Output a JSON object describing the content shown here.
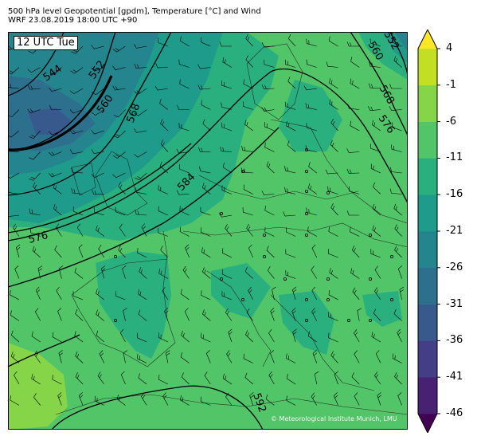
{
  "title_line1": "500 hPa level Geopotential [gpdm], Temperature [°C] and Wind",
  "title_line2": "WRF 23.08.2019 18:00 UTC +90",
  "time_label": "12 UTC Tue",
  "credit": "© Meteorological Institute Munich, LMU",
  "colorbar": {
    "ticks": [
      "4",
      "-1",
      "-6",
      "-11",
      "-16",
      "-21",
      "-26",
      "-31",
      "-36",
      "-41",
      "-46"
    ],
    "colors": [
      "#440154",
      "#482173",
      "#433e85",
      "#38598c",
      "#2d708e",
      "#25858e",
      "#1e9b8a",
      "#2ab07f",
      "#52c569",
      "#86d549",
      "#c2df23",
      "#fde725"
    ]
  },
  "contours": {
    "labels": [
      "544",
      "552",
      "560",
      "568",
      "576",
      "584",
      "592",
      "560",
      "568",
      "576",
      "552"
    ],
    "color": "#000000"
  },
  "fill_colors": {
    "minus36": "#38598c",
    "minus31": "#2d708e",
    "minus26": "#25858e",
    "minus21": "#1e9b8a",
    "minus16": "#2ab07f",
    "minus11": "#52c569",
    "minus6": "#86d549"
  }
}
